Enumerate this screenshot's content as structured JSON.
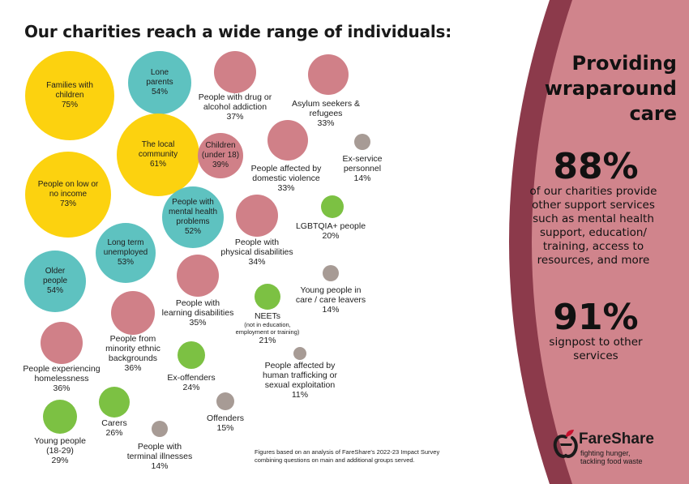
{
  "title": "Our charities reach a wide range of individuals:",
  "colors": {
    "yellow": "#fcd20f",
    "teal": "#5ec2c0",
    "pink": "#d08088",
    "green": "#7cc143",
    "grey": "#a79b95",
    "panel_dark": "#8c3a4b",
    "panel_light": "#d0848c"
  },
  "groups": [
    {
      "name": "Families with\nchildren",
      "pct": "75%",
      "color": "yellow"
    },
    {
      "name": "Lone\nparents",
      "pct": "54%",
      "color": "teal"
    },
    {
      "name": "People with drug or\nalcohol addiction",
      "pct": "37%",
      "color": "pink"
    },
    {
      "name": "Asylum seekers &\nrefugees",
      "pct": "33%",
      "color": "pink"
    },
    {
      "name": "The local\ncommunity",
      "pct": "61%",
      "color": "yellow"
    },
    {
      "name": "Children\n(under 18)",
      "pct": "39%",
      "color": "pink"
    },
    {
      "name": "People affected by\ndomestic violence",
      "pct": "33%",
      "color": "pink"
    },
    {
      "name": "Ex-service\npersonnel",
      "pct": "14%",
      "color": "grey"
    },
    {
      "name": "People on low or\nno income",
      "pct": "73%",
      "color": "yellow"
    },
    {
      "name": "People with\nmental health\nproblems",
      "pct": "52%",
      "color": "teal"
    },
    {
      "name": "People with\nphysical disabilities",
      "pct": "34%",
      "color": "pink"
    },
    {
      "name": "LGBTQIA+ people",
      "pct": "20%",
      "color": "green"
    },
    {
      "name": "Long term\nunemployed",
      "pct": "53%",
      "color": "teal"
    },
    {
      "name": "Older\npeople",
      "pct": "54%",
      "color": "teal"
    },
    {
      "name": "Young people in\ncare / care leavers",
      "pct": "14%",
      "color": "grey"
    },
    {
      "name": "People with\nlearning disabilities",
      "pct": "35%",
      "color": "pink"
    },
    {
      "name": "NEETs",
      "sub": "(not in education,\nemployment or training)",
      "pct": "21%",
      "color": "green"
    },
    {
      "name": "People from\nminority ethnic\nbackgrounds",
      "pct": "36%",
      "color": "pink"
    },
    {
      "name": "People experiencing\nhomelessness",
      "pct": "36%",
      "color": "pink"
    },
    {
      "name": "Ex-offenders",
      "pct": "24%",
      "color": "green"
    },
    {
      "name": "People affected by\nhuman trafficking or\nsexual exploitation",
      "pct": "11%",
      "color": "grey"
    },
    {
      "name": "Offenders",
      "pct": "15%",
      "color": "grey"
    },
    {
      "name": "Carers",
      "pct": "26%",
      "color": "green"
    },
    {
      "name": "Young people\n(18-29)",
      "pct": "29%",
      "color": "green"
    },
    {
      "name": "People with\nterminal illnesses",
      "pct": "14%",
      "color": "grey"
    }
  ],
  "panel": {
    "heading": "Providing\nwraparound\ncare",
    "stat1_value": "88%",
    "stat1_text": "of our charities provide\nother support services\nsuch as mental health\nsupport, education/\ntraining, access to\nresources, and more",
    "stat2_value": "91%",
    "stat2_text": "signpost to other\nservices"
  },
  "footnote": "Figures based on an analysis of FareShare's 2022-23 Impact Survey\ncombining questions on main and additional groups served.",
  "logo": {
    "name": "FareShare",
    "tagline": "fighting hunger,\ntackling food waste"
  }
}
